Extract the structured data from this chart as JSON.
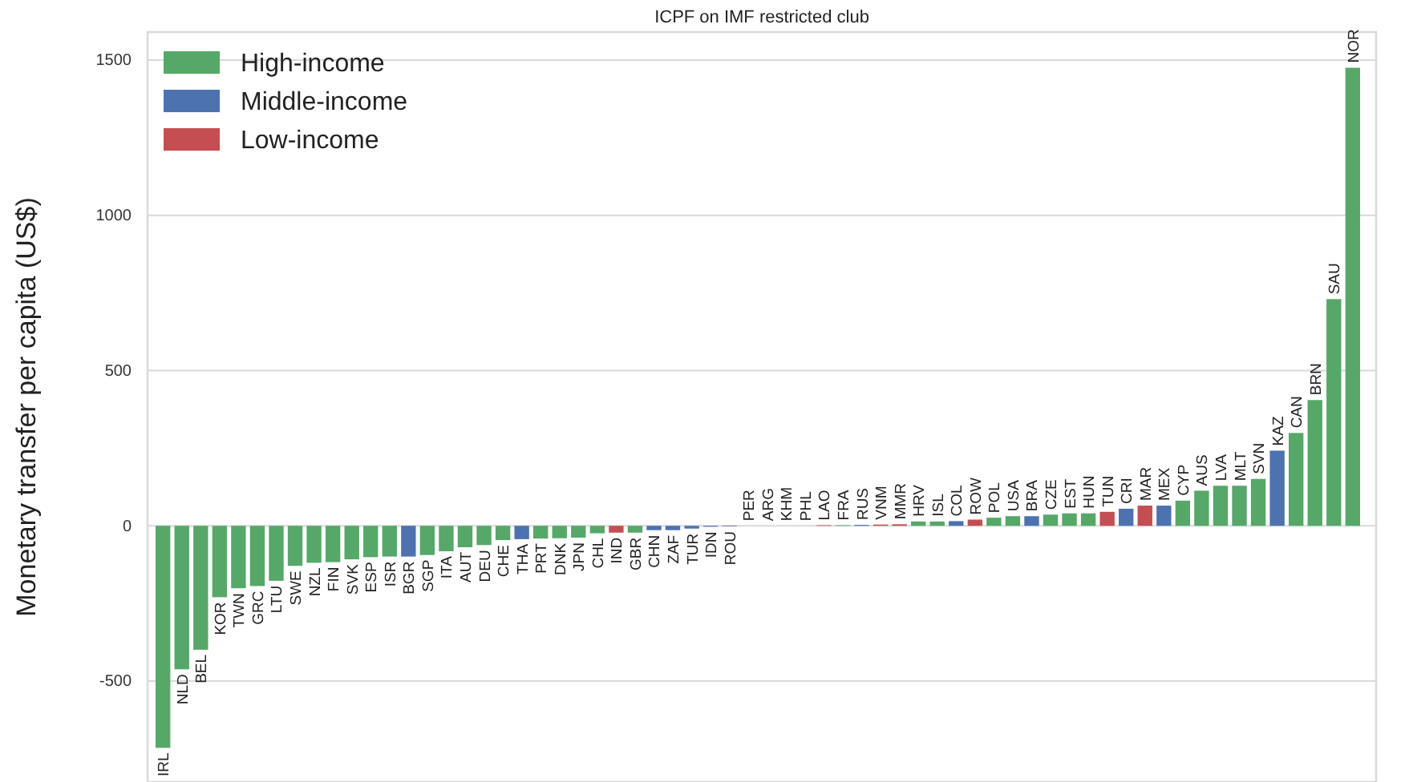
{
  "chart_data": {
    "type": "bar",
    "title": "ICPF on IMF restricted club",
    "ylabel": "Monetary transfer per capita (US$)",
    "categories": [
      "IRL",
      "NLD",
      "BEL",
      "KOR",
      "TWN",
      "GRC",
      "LTU",
      "SWE",
      "NZL",
      "FIN",
      "SVK",
      "ESP",
      "ISR",
      "BGR",
      "SGP",
      "ITA",
      "AUT",
      "DEU",
      "CHE",
      "THA",
      "PRT",
      "DNK",
      "JPN",
      "CHL",
      "IND",
      "GBR",
      "CHN",
      "ZAF",
      "TUR",
      "IDN",
      "ROU",
      "PER",
      "ARG",
      "KHM",
      "PHL",
      "LAO",
      "FRA",
      "RUS",
      "VNM",
      "MMR",
      "HRV",
      "ISL",
      "COL",
      "ROW",
      "POL",
      "USA",
      "BRA",
      "CZE",
      "EST",
      "HUN",
      "TUN",
      "CRI",
      "MAR",
      "MEX",
      "CYP",
      "AUS",
      "LVA",
      "MLT",
      "SVN",
      "KAZ",
      "CAN",
      "BRN",
      "SAU",
      "NOR"
    ],
    "series": [
      {
        "name": "High-income",
        "color": "#55a868",
        "values": [
          -715,
          -462,
          -399,
          -230,
          -201,
          -194,
          -177,
          -129,
          -119,
          -117,
          -108,
          -101,
          -99,
          null,
          -94,
          -82,
          -69,
          -62,
          -46,
          null,
          -41,
          -40,
          -38,
          -24,
          null,
          -22,
          null,
          null,
          null,
          null,
          null,
          null,
          null,
          null,
          null,
          null,
          2,
          null,
          null,
          null,
          14,
          14,
          null,
          null,
          26,
          31,
          null,
          36,
          40,
          40,
          null,
          null,
          null,
          null,
          81,
          113,
          129,
          129,
          151,
          null,
          299,
          405,
          730,
          1475
        ]
      },
      {
        "name": "Middle-income",
        "color": "#4c72b0",
        "values": [
          null,
          null,
          null,
          null,
          null,
          null,
          null,
          null,
          null,
          null,
          null,
          null,
          null,
          -99,
          null,
          null,
          null,
          null,
          null,
          -43,
          null,
          null,
          null,
          null,
          null,
          null,
          -14,
          -14,
          -9,
          -3,
          -2,
          null,
          null,
          null,
          null,
          null,
          null,
          3,
          null,
          null,
          null,
          null,
          15,
          null,
          null,
          null,
          31,
          null,
          null,
          null,
          null,
          55,
          null,
          65,
          null,
          null,
          null,
          null,
          null,
          242,
          null,
          null,
          null,
          null
        ]
      },
      {
        "name": "Low-income",
        "color": "#c44e52",
        "values": [
          null,
          null,
          null,
          null,
          null,
          null,
          null,
          null,
          null,
          null,
          null,
          null,
          null,
          null,
          null,
          null,
          null,
          null,
          null,
          null,
          null,
          null,
          null,
          null,
          -22,
          null,
          null,
          null,
          null,
          null,
          null,
          null,
          null,
          null,
          null,
          2,
          null,
          null,
          4,
          5,
          null,
          null,
          null,
          20,
          null,
          null,
          null,
          null,
          null,
          null,
          45,
          null,
          65,
          null,
          null,
          null,
          null,
          null,
          null,
          null,
          null,
          null,
          null,
          null
        ]
      }
    ],
    "ylim": [
      -825,
      1590
    ],
    "yticks": [
      -500,
      0,
      500,
      1000,
      1500
    ],
    "grid": "y",
    "legend": "top left"
  }
}
